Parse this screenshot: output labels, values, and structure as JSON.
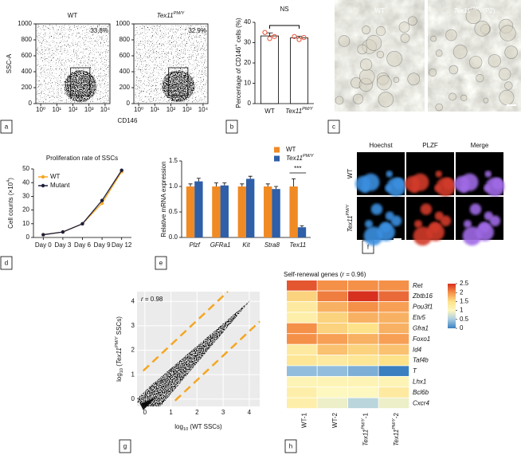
{
  "panel_labels": [
    "a",
    "b",
    "c",
    "d",
    "e",
    "f",
    "g",
    "h"
  ],
  "images": {
    "c": {
      "labels": [
        "WT",
        [
          {
            "text": "Tex11",
            "italic": true
          },
          {
            "text": "PM/Y",
            "italic": true,
            "sup": true
          },
          {
            "text": " (P2)"
          }
        ]
      ]
    },
    "f": {
      "columns": [
        "Hoechst",
        "PLZF",
        "Merge"
      ],
      "rows": [
        "WT",
        [
          {
            "text": "Tex11",
            "italic": true
          },
          {
            "text": "PM/Y",
            "italic": true,
            "sup": true
          }
        ]
      ]
    }
  },
  "chart_data": [
    {
      "type": "scatter",
      "title": "WT",
      "annotation": "33.8%",
      "ylabel": "SSC-A",
      "xlabel": "CD146",
      "xscale": "log",
      "xlim": [
        0.5,
        20000
      ],
      "xticks": [
        {
          "value": 1,
          "label": "10⁰"
        },
        {
          "value": 10,
          "label": "10¹"
        },
        {
          "value": 100,
          "label": "10²"
        },
        {
          "value": 1000,
          "label": "10³"
        },
        {
          "value": 10000,
          "label": "10⁴"
        }
      ],
      "ylim": [
        0,
        1000
      ],
      "yticks": [
        0,
        200,
        400,
        600,
        800,
        1000
      ],
      "grid": false
    },
    {
      "type": "scatter",
      "title": [
        {
          "text": "Tex11",
          "italic": true
        },
        {
          "text": "PM/Y",
          "italic": true,
          "sup": true
        }
      ],
      "annotation": "32.9%",
      "xscale": "log",
      "xlim": [
        0.5,
        20000
      ],
      "xticks": [
        {
          "value": 1,
          "label": "10⁰"
        },
        {
          "value": 10,
          "label": "10¹"
        },
        {
          "value": 100,
          "label": "10²"
        },
        {
          "value": 1000,
          "label": "10³"
        },
        {
          "value": 10000,
          "label": "10⁴"
        }
      ],
      "ylim": [
        0,
        1000
      ],
      "yticks": [
        0,
        200,
        400,
        600,
        800,
        1000
      ],
      "grid": false
    },
    {
      "type": "bar",
      "ylabel": [
        {
          "text": "Percentage of CD146"
        },
        {
          "text": "+",
          "sup": true
        },
        {
          "text": " cells (%)"
        }
      ],
      "annotation": "NS",
      "categories": [
        "WT",
        [
          {
            "text": "Tex11",
            "italic": true
          },
          {
            "text": "PM/Y",
            "italic": true,
            "sup": true
          }
        ]
      ],
      "values": [
        33.3,
        32.3
      ],
      "errors": [
        1.5,
        0.8
      ],
      "points": [
        [
          35,
          32,
          33
        ],
        [
          33,
          31.5,
          32.5
        ]
      ],
      "color": "#e8553a",
      "ylim": [
        0,
        40
      ],
      "yticks": [
        0,
        10,
        20,
        30,
        40
      ],
      "grid": false
    },
    {
      "type": "line",
      "title": "Proliferation rate of SSCs",
      "ylabel": [
        {
          "text": "Cell counts (×10"
        },
        {
          "text": "4",
          "sup": true
        },
        {
          "text": ")"
        }
      ],
      "categories": [
        "Day 0",
        "Day 3",
        "Day 6",
        "Day 9",
        "Day 12"
      ],
      "series": [
        {
          "name": "WT",
          "color": "#f5a623",
          "values": [
            2,
            4,
            10,
            25,
            48
          ]
        },
        {
          "name": "Mutant",
          "color": "#1f1f3a",
          "values": [
            2,
            4,
            10,
            27,
            49
          ]
        }
      ],
      "ylim": [
        0,
        50
      ],
      "yticks": [
        0,
        10,
        20,
        30,
        40,
        50
      ],
      "legend": "upper left",
      "grid": false
    },
    {
      "type": "bar",
      "ylabel": "Relative mRNA expression",
      "annotation": "***",
      "italic_categories": true,
      "categories": [
        "Plzf",
        "GFRa1",
        "Kit",
        "Stra8",
        "Tex11"
      ],
      "series": [
        {
          "name": "WT",
          "color": "#f08a24",
          "values": [
            1.0,
            1.0,
            1.0,
            1.0,
            1.0
          ],
          "errors": [
            0.05,
            0.07,
            0.05,
            0.05,
            0.15
          ]
        },
        {
          "name": [
            {
              "text": "Tex11",
              "italic": true
            },
            {
              "text": "PM/Y",
              "italic": true,
              "sup": true
            }
          ],
          "color": "#2e5fa8",
          "values": [
            1.1,
            1.02,
            1.15,
            0.95,
            0.2
          ],
          "errors": [
            0.06,
            0.05,
            0.05,
            0.05,
            0.03
          ]
        }
      ],
      "ylim": [
        0,
        1.5
      ],
      "yticks": [
        {
          "value": 0,
          "label": "0.0"
        },
        {
          "value": 0.5,
          "label": "0.5"
        },
        {
          "value": 1,
          "label": "1.0"
        },
        {
          "value": 1.5,
          "label": "1.5"
        }
      ],
      "legend": "upper right",
      "grid": false
    },
    {
      "type": "scatter",
      "annotation": [
        {
          "text": "r",
          "italic": true
        },
        {
          "text": " = 0.98"
        }
      ],
      "xlabel": [
        {
          "text": "log"
        },
        {
          "text": "10",
          "sub": true
        },
        {
          "text": " (WT SSCs)"
        }
      ],
      "ylabel": [
        {
          "text": "log"
        },
        {
          "text": "10",
          "sub": true
        },
        {
          "text": " ("
        },
        {
          "text": "Tex11",
          "italic": true
        },
        {
          "text": "PM/Y",
          "italic": true,
          "sup": true
        },
        {
          "text": " SSCs)"
        }
      ],
      "xlim": [
        -0.3,
        4.4
      ],
      "xticks": [
        0,
        1,
        2,
        3,
        4
      ],
      "ylim": [
        -0.3,
        4.4
      ],
      "yticks": [
        0,
        1,
        2,
        3,
        4
      ],
      "grid": true,
      "background": "#ebebeb",
      "color": "#000000"
    },
    {
      "type": "heatmap",
      "title": [
        {
          "text": "Self-renewal genes ("
        },
        {
          "text": "r",
          "italic": true
        },
        {
          "text": " = 0.96)"
        }
      ],
      "rows": [
        "Ret",
        "Zbtb16",
        "Pou3f1",
        "Etv5",
        "Gfra1",
        "Foxo1",
        "Id4",
        "Taf4b",
        "T",
        "Lhx1",
        "Bcl6b",
        "Cxcr4"
      ],
      "columns": [
        "WT-1",
        "WT-2",
        [
          {
            "text": "Tex11",
            "italic": true
          },
          {
            "text": "PM/Y",
            "italic": true,
            "sup": true
          },
          {
            "text": "-1"
          }
        ],
        [
          {
            "text": "Tex11",
            "italic": true
          },
          {
            "text": "PM/Y",
            "italic": true,
            "sup": true
          },
          {
            "text": "-2"
          }
        ]
      ],
      "values": [
        [
          2.3,
          2.0,
          2.0,
          2.0
        ],
        [
          1.6,
          2.1,
          2.5,
          2.2
        ],
        [
          1.3,
          1.8,
          2.0,
          1.9
        ],
        [
          1.2,
          1.6,
          1.8,
          1.8
        ],
        [
          2.0,
          1.6,
          1.5,
          1.8
        ],
        [
          2.0,
          1.9,
          1.8,
          1.9
        ],
        [
          1.3,
          1.7,
          1.6,
          1.7
        ],
        [
          1.4,
          1.3,
          1.4,
          1.5
        ],
        [
          0.4,
          0.4,
          0.3,
          0.0
        ],
        [
          1.1,
          1.1,
          1.1,
          1.1
        ],
        [
          1.2,
          1.0,
          1.0,
          1.3
        ],
        [
          1.2,
          0.9,
          0.6,
          0.9
        ]
      ],
      "zlim": [
        0,
        2.5
      ],
      "zticks": [
        0,
        0.5,
        1,
        1.5,
        2,
        2.5
      ],
      "colormap": [
        "#3a7fbf",
        "#a9cde3",
        "#fdf7c0",
        "#fde28a",
        "#f59048",
        "#d7301f"
      ]
    }
  ]
}
